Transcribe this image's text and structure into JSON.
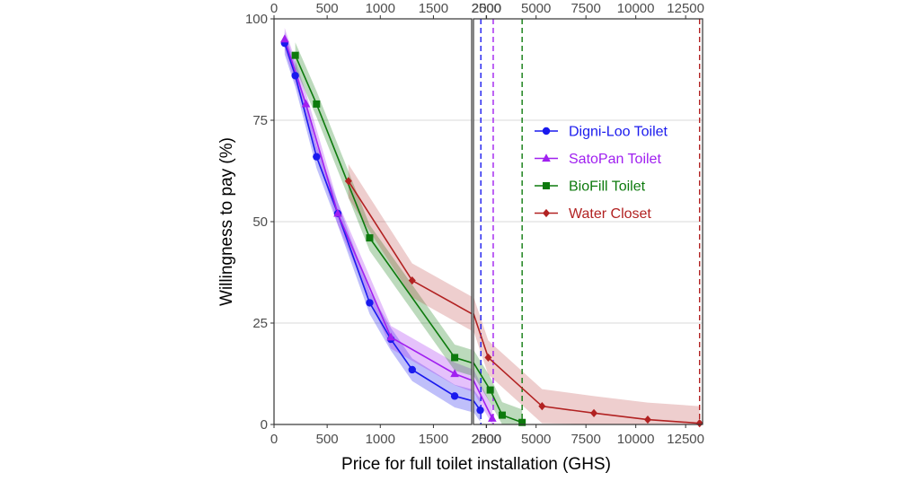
{
  "chart_data": {
    "type": "line",
    "xlabel": "Price for full toilet installation (GHS)",
    "ylabel": "Willingness to pay (%)",
    "ylim": [
      0,
      100
    ],
    "yticks": [
      0,
      25,
      50,
      75,
      100
    ],
    "grid": true,
    "legend_position": "center-right",
    "panels": [
      {
        "xlim": [
          0,
          1860
        ],
        "xticks_bottom": [
          0,
          500,
          1000,
          1500,
          2000
        ],
        "xticks_top": [
          0,
          500,
          1000,
          1500,
          2000
        ]
      },
      {
        "xlim": [
          1860,
          13350
        ],
        "xticks_bottom": [
          2500,
          5000,
          7500,
          10000,
          12500
        ],
        "xticks_top": [
          2500,
          5000,
          7500,
          10000,
          12500
        ]
      }
    ],
    "series": [
      {
        "name": "Digni-Loo Toilet",
        "color": "#1a1aee",
        "marker": "circle",
        "x": [
          100,
          200,
          400,
          600,
          900,
          1100,
          1300,
          1700,
          2200
        ],
        "y": [
          94,
          86,
          66,
          52,
          30,
          21,
          13.5,
          7,
          3.5
        ],
        "band": 2.8,
        "cutoff": 2230
      },
      {
        "name": "SatoPan Toilet",
        "color": "#a020f0",
        "marker": "triangle",
        "x": [
          100,
          300,
          600,
          1100,
          1700,
          2800
        ],
        "y": [
          95,
          79,
          52,
          21.5,
          12.5,
          1.5
        ],
        "band": 2.8,
        "cutoff": 2850
      },
      {
        "name": "BioFill Toilet",
        "color": "#0d7a0d",
        "marker": "square",
        "x": [
          200,
          400,
          900,
          1700,
          2700,
          3300,
          4300
        ],
        "y": [
          91,
          79,
          46,
          16.5,
          8.5,
          2.3,
          0.5
        ],
        "band": 3.2,
        "cutoff": 4300
      },
      {
        "name": "Water Closet",
        "color": "#b22222",
        "marker": "diamond",
        "x": [
          700,
          1300,
          2600,
          5300,
          7900,
          10600,
          13200
        ],
        "y": [
          60,
          35.5,
          16.5,
          4.5,
          2.8,
          1.2,
          0.3
        ],
        "band": 4.2,
        "cutoff": 13200
      }
    ]
  }
}
